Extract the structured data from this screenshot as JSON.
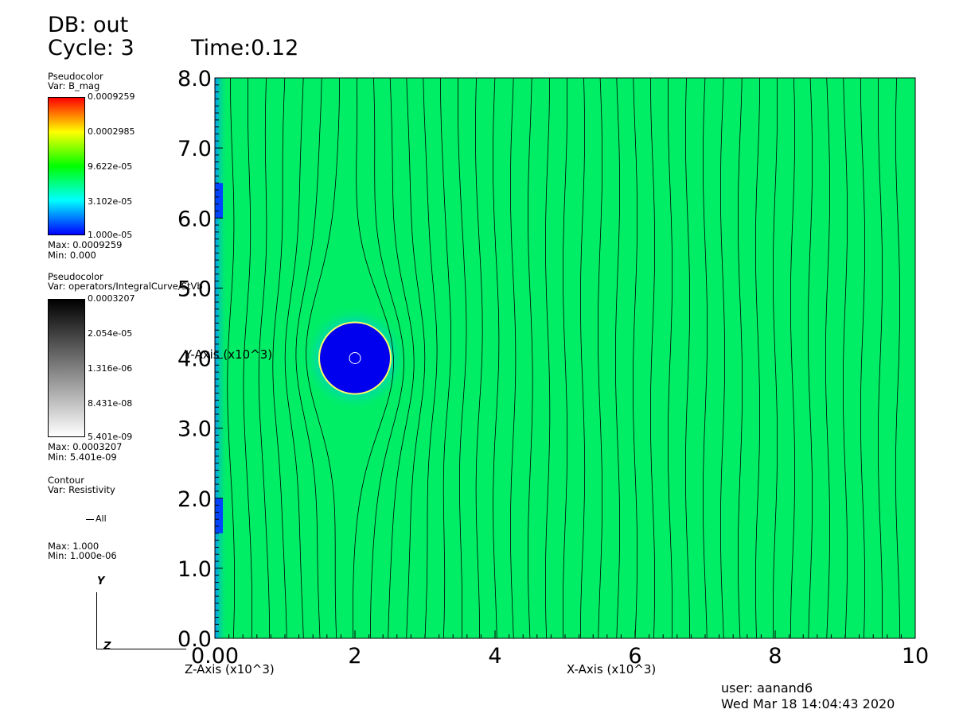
{
  "header": {
    "db": "DB: out",
    "cycle": "Cycle: 3",
    "time": "Time:0.12"
  },
  "legends": [
    {
      "plot": "Pseudocolor",
      "var": "Var: B_mag",
      "ticks": [
        "0.0009259",
        "0.0002985",
        "9.622e-05",
        "3.102e-05",
        "1.000e-05"
      ],
      "max": "Max:  0.0009259",
      "min": "Min:  0.000",
      "colors": [
        "#ff0000",
        "#ffff00",
        "#00ff00",
        "#00ffff",
        "#0000ff"
      ]
    },
    {
      "plot": "Pseudocolor",
      "var": "Var: operators/IntegralCurve/StVb",
      "ticks": [
        "0.0003207",
        "2.054e-05",
        "1.316e-06",
        "8.431e-08",
        "5.401e-09"
      ],
      "max": "Max:  0.0003207",
      "min": "Min:  5.401e-09",
      "colors": [
        "#000000",
        "#ffffff"
      ]
    },
    {
      "plot": "Contour",
      "var": "Var: Resistivity",
      "entry": "All",
      "max": "Max:  1.000",
      "min": "Min:  1.000e-06"
    }
  ],
  "triad": {
    "y": "Y",
    "z": "Z"
  },
  "chart_data": {
    "type": "heatmap",
    "xlabel": "X-Axis (x10^3)",
    "ylabel": "Y-Axis (x10^3)",
    "zlabel": "Z-Axis (x10^3)",
    "xlim": [
      0,
      10
    ],
    "ylim": [
      0,
      8
    ],
    "x_ticks": [
      "0.00",
      "2",
      "4",
      "6",
      "8",
      "10"
    ],
    "y_ticks": [
      "0.0",
      "1.0",
      "2.0",
      "3.0",
      "4.0",
      "5.0",
      "6.0",
      "7.0",
      "8.0"
    ],
    "background_color": "#00ee66",
    "obstacle": {
      "center": [
        2.0,
        4.0
      ],
      "radius": 0.5,
      "color": "#0000ee"
    },
    "field_lines_x": [
      0.25,
      0.5,
      0.75,
      1.0,
      1.25,
      1.5,
      1.75,
      2.0,
      2.25,
      2.5,
      2.75,
      3.0,
      3.25,
      3.5,
      3.75,
      4.0,
      4.25,
      4.5,
      4.75,
      5.0,
      5.25,
      5.5,
      5.75,
      6.0,
      6.25,
      6.5,
      6.75,
      7.0,
      7.25,
      7.5,
      7.75,
      8.0,
      8.25,
      8.5,
      8.75,
      9.0,
      9.25,
      9.5,
      9.75
    ]
  },
  "footer": {
    "user": "user: aanand6",
    "date": "Wed Mar 18 14:04:43 2020"
  }
}
